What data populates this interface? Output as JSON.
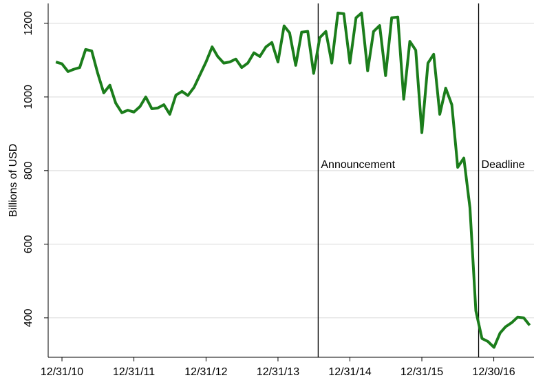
{
  "chart_data": {
    "type": "line",
    "y_label": "Billions of USD",
    "x": [
      "11/30/10",
      "12/31/10",
      "1/31/11",
      "2/28/11",
      "3/31/11",
      "4/30/11",
      "5/31/11",
      "6/30/11",
      "7/31/11",
      "8/31/11",
      "9/30/11",
      "10/31/11",
      "11/30/11",
      "12/31/11",
      "1/31/12",
      "2/29/12",
      "3/31/12",
      "4/30/12",
      "5/31/12",
      "6/30/12",
      "7/31/12",
      "8/31/12",
      "9/30/12",
      "10/31/12",
      "11/30/12",
      "12/31/12",
      "1/31/13",
      "2/28/13",
      "3/31/13",
      "4/30/13",
      "5/31/13",
      "6/30/13",
      "7/31/13",
      "8/31/13",
      "9/30/13",
      "10/31/13",
      "11/30/13",
      "12/31/13",
      "1/31/14",
      "2/28/14",
      "3/31/14",
      "4/30/14",
      "5/31/14",
      "6/30/14",
      "7/31/14",
      "8/31/14",
      "9/30/14",
      "10/31/14",
      "11/30/14",
      "12/31/14",
      "1/31/15",
      "2/28/15",
      "3/31/15",
      "4/30/15",
      "5/31/15",
      "6/30/15",
      "7/31/15",
      "8/31/15",
      "9/30/15",
      "10/31/15",
      "11/30/15",
      "12/31/15",
      "1/31/16",
      "2/29/16",
      "3/31/16",
      "4/30/16",
      "5/31/16",
      "6/30/16",
      "7/31/16",
      "8/31/16",
      "9/30/16",
      "10/31/16",
      "11/30/16",
      "12/31/16",
      "1/31/17",
      "2/28/17",
      "3/31/17",
      "4/30/17",
      "5/31/17",
      "6/30/17"
    ],
    "series": [
      {
        "color": "#1b7d1b",
        "values": [
          1095,
          1090,
          1069,
          1075,
          1080,
          1129,
          1125,
          1065,
          1011,
          1032,
          983,
          957,
          964,
          959,
          974,
          1000,
          968,
          970,
          979,
          953,
          1005,
          1015,
          1004,
          1026,
          1060,
          1095,
          1136,
          1110,
          1092,
          1095,
          1103,
          1080,
          1092,
          1120,
          1110,
          1136,
          1148,
          1095,
          1193,
          1174,
          1086,
          1176,
          1178,
          1064,
          1161,
          1178,
          1092,
          1228,
          1226,
          1092,
          1215,
          1228,
          1071,
          1178,
          1194,
          1058,
          1215,
          1217,
          994,
          1151,
          1127,
          903,
          1092,
          1116,
          953,
          1024,
          979,
          809,
          834,
          699,
          419,
          344,
          336,
          320,
          359,
          376,
          387,
          402,
          400,
          380
        ]
      }
    ],
    "xlim": [
      "10/22/10",
      "7/22/17"
    ],
    "xticks": [
      "12/31/10",
      "12/31/11",
      "12/31/12",
      "12/31/13",
      "12/31/14",
      "12/31/15",
      "12/30/16"
    ],
    "ylim": [
      293,
      1254
    ],
    "yticks": [
      400,
      600,
      800,
      1000,
      1200
    ],
    "grid": true,
    "annotations": [
      {
        "x": "7/23/14",
        "label": "Announcement"
      },
      {
        "x": "10/14/16",
        "label": "Deadline"
      }
    ]
  }
}
